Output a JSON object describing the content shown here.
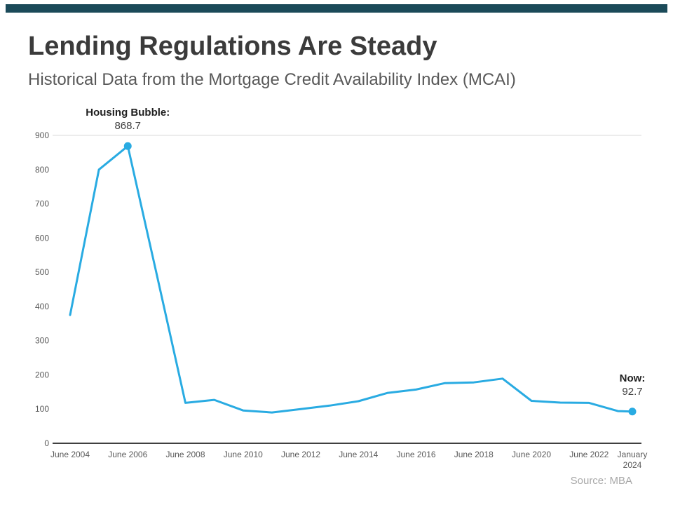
{
  "header": {
    "bar_color": "#1B4A59",
    "title": "Lending Regulations Are Steady",
    "subtitle": "Historical Data from the Mortgage Credit Availability Index (MCAI)"
  },
  "source": "Source: MBA",
  "chart_data": {
    "type": "line",
    "title": "Mortgage Credit Availability Index (MCAI)",
    "line_color": "#29ABE2",
    "axis_color": "#404040",
    "tick_label_color": "#595959",
    "gridline_color": "#d9d9d9",
    "ylim": [
      0,
      900
    ],
    "ytick_step": 100,
    "legend": "none",
    "x_ticks": [
      {
        "label": "June 2004",
        "year": 2004.5
      },
      {
        "label": "June 2006",
        "year": 2006.5
      },
      {
        "label": "June 2008",
        "year": 2008.5
      },
      {
        "label": "June 2010",
        "year": 2010.5
      },
      {
        "label": "June 2012",
        "year": 2012.5
      },
      {
        "label": "June 2014",
        "year": 2014.5
      },
      {
        "label": "June 2016",
        "year": 2016.5
      },
      {
        "label": "June 2018",
        "year": 2018.5
      },
      {
        "label": "June 2020",
        "year": 2020.5
      },
      {
        "label": "June 2022",
        "year": 2022.5
      },
      {
        "label": "January 2024",
        "year": 2024.0,
        "wrap": true
      }
    ],
    "points": [
      {
        "label": "June 2004",
        "year": 2004.5,
        "value": 375
      },
      {
        "label": "June 2005",
        "year": 2005.5,
        "value": 800
      },
      {
        "label": "June 2006",
        "year": 2006.5,
        "value": 868.7,
        "marker": true
      },
      {
        "label": "June 2007",
        "year": 2007.5,
        "value": 495
      },
      {
        "label": "June 2008",
        "year": 2008.5,
        "value": 118
      },
      {
        "label": "June 2009",
        "year": 2009.5,
        "value": 127
      },
      {
        "label": "June 2010",
        "year": 2010.5,
        "value": 96
      },
      {
        "label": "June 2011",
        "year": 2011.5,
        "value": 90
      },
      {
        "label": "June 2012",
        "year": 2012.5,
        "value": 100
      },
      {
        "label": "June 2013",
        "year": 2013.5,
        "value": 110
      },
      {
        "label": "June 2014",
        "year": 2014.5,
        "value": 123
      },
      {
        "label": "June 2015",
        "year": 2015.5,
        "value": 147
      },
      {
        "label": "June 2016",
        "year": 2016.5,
        "value": 157
      },
      {
        "label": "June 2017",
        "year": 2017.5,
        "value": 176
      },
      {
        "label": "June 2018",
        "year": 2018.5,
        "value": 178
      },
      {
        "label": "June 2019",
        "year": 2019.5,
        "value": 189
      },
      {
        "label": "June 2020",
        "year": 2020.5,
        "value": 124
      },
      {
        "label": "June 2021",
        "year": 2021.5,
        "value": 119
      },
      {
        "label": "June 2022",
        "year": 2022.5,
        "value": 118
      },
      {
        "label": "June 2023",
        "year": 2023.5,
        "value": 94
      },
      {
        "label": "January 2024",
        "year": 2024.0,
        "value": 92.7,
        "marker": true
      }
    ],
    "annotations": [
      {
        "label": "Housing Bubble:",
        "value": "868.7",
        "point_year": 2006.5,
        "point_value": 868.7
      },
      {
        "label": "Now:",
        "value": "92.7",
        "point_year": 2024.0,
        "point_value": 92.7
      }
    ]
  }
}
